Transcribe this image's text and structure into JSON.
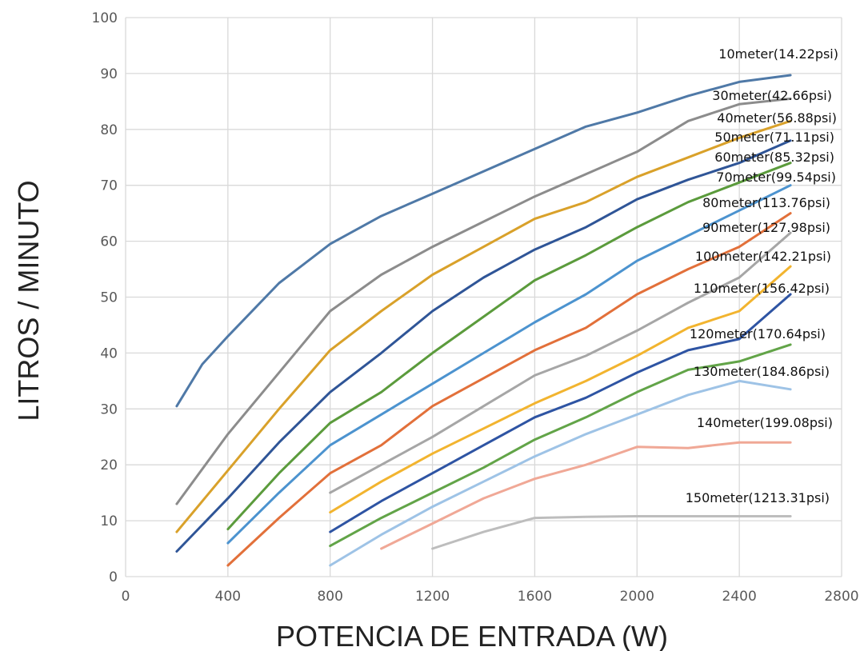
{
  "chart_data": {
    "type": "line",
    "title": "",
    "xlabel": "POTENCIA DE ENTRADA (W)",
    "ylabel": "LITROS / MINUTO",
    "xlim": [
      0,
      2800
    ],
    "ylim": [
      0,
      100
    ],
    "x_ticks": [
      0,
      400,
      800,
      1200,
      1600,
      2000,
      2400,
      2800
    ],
    "y_ticks": [
      0,
      10,
      20,
      30,
      40,
      50,
      60,
      70,
      80,
      90,
      100
    ],
    "grid": true,
    "legend": "inline-right",
    "series": [
      {
        "name": "10meter(14.22psi)",
        "color": "#4f79a7",
        "points": [
          [
            200,
            30.5
          ],
          [
            300,
            38
          ],
          [
            400,
            43
          ],
          [
            600,
            52.5
          ],
          [
            800,
            59.5
          ],
          [
            1000,
            64.5
          ],
          [
            1200,
            68.5
          ],
          [
            1400,
            72.5
          ],
          [
            1600,
            76.5
          ],
          [
            1800,
            80.5
          ],
          [
            2000,
            83
          ],
          [
            2200,
            86
          ],
          [
            2400,
            88.5
          ],
          [
            2600,
            89.7
          ]
        ]
      },
      {
        "name": "30meter(42.66psi)",
        "color": "#8c8c8c",
        "points": [
          [
            200,
            13
          ],
          [
            400,
            25.5
          ],
          [
            600,
            36.5
          ],
          [
            800,
            47.5
          ],
          [
            1000,
            54
          ],
          [
            1200,
            59
          ],
          [
            1400,
            63.5
          ],
          [
            1600,
            68
          ],
          [
            1800,
            72
          ],
          [
            2000,
            76
          ],
          [
            2200,
            81.5
          ],
          [
            2400,
            84.5
          ],
          [
            2600,
            85.5
          ]
        ]
      },
      {
        "name": "40meter(56.88psi)",
        "color": "#d9a12a",
        "points": [
          [
            200,
            8
          ],
          [
            400,
            19
          ],
          [
            600,
            30
          ],
          [
            800,
            40.5
          ],
          [
            1000,
            47.5
          ],
          [
            1200,
            54
          ],
          [
            1400,
            59
          ],
          [
            1600,
            64
          ],
          [
            1800,
            67
          ],
          [
            2000,
            71.5
          ],
          [
            2200,
            75
          ],
          [
            2400,
            78.5
          ],
          [
            2600,
            81.5
          ]
        ]
      },
      {
        "name": "50meter(71.11psi)",
        "color": "#2f5597",
        "points": [
          [
            200,
            4.5
          ],
          [
            400,
            14
          ],
          [
            600,
            24
          ],
          [
            800,
            33
          ],
          [
            1000,
            40
          ],
          [
            1200,
            47.5
          ],
          [
            1400,
            53.5
          ],
          [
            1600,
            58.5
          ],
          [
            1800,
            62.5
          ],
          [
            2000,
            67.5
          ],
          [
            2200,
            71
          ],
          [
            2400,
            74
          ],
          [
            2600,
            78
          ]
        ]
      },
      {
        "name": "60meter(85.32psi)",
        "color": "#5b9b3c",
        "points": [
          [
            400,
            8.5
          ],
          [
            600,
            18.5
          ],
          [
            800,
            27.5
          ],
          [
            1000,
            33
          ],
          [
            1200,
            40
          ],
          [
            1400,
            46.5
          ],
          [
            1600,
            53
          ],
          [
            1800,
            57.5
          ],
          [
            2000,
            62.5
          ],
          [
            2200,
            67
          ],
          [
            2400,
            70.5
          ],
          [
            2600,
            74
          ]
        ]
      },
      {
        "name": "70meter(99.54psi)",
        "color": "#4c93cf",
        "points": [
          [
            400,
            6
          ],
          [
            600,
            15
          ],
          [
            800,
            23.5
          ],
          [
            1000,
            29
          ],
          [
            1200,
            34.5
          ],
          [
            1400,
            40
          ],
          [
            1600,
            45.5
          ],
          [
            1800,
            50.5
          ],
          [
            2000,
            56.5
          ],
          [
            2200,
            61
          ],
          [
            2400,
            65.5
          ],
          [
            2600,
            70
          ]
        ]
      },
      {
        "name": "80meter(113.76psi)",
        "color": "#e2703a",
        "points": [
          [
            400,
            2
          ],
          [
            600,
            10.5
          ],
          [
            800,
            18.5
          ],
          [
            1000,
            23.5
          ],
          [
            1200,
            30.5
          ],
          [
            1400,
            35.5
          ],
          [
            1600,
            40.5
          ],
          [
            1800,
            44.5
          ],
          [
            2000,
            50.5
          ],
          [
            2200,
            55
          ],
          [
            2400,
            59
          ],
          [
            2600,
            65
          ]
        ]
      },
      {
        "name": "90meter(127.98psi)",
        "color": "#a6a6a6",
        "points": [
          [
            800,
            15
          ],
          [
            1000,
            20
          ],
          [
            1200,
            25
          ],
          [
            1400,
            30.5
          ],
          [
            1600,
            36
          ],
          [
            1800,
            39.5
          ],
          [
            2000,
            44
          ],
          [
            2200,
            49
          ],
          [
            2400,
            53.5
          ],
          [
            2600,
            61.5
          ]
        ]
      },
      {
        "name": "100meter(142.21psi)",
        "color": "#f2b42f",
        "points": [
          [
            800,
            11.5
          ],
          [
            1000,
            17
          ],
          [
            1200,
            22
          ],
          [
            1400,
            26.5
          ],
          [
            1600,
            31
          ],
          [
            1800,
            35
          ],
          [
            2000,
            39.5
          ],
          [
            2200,
            44.5
          ],
          [
            2400,
            47.5
          ],
          [
            2600,
            55.5
          ]
        ]
      },
      {
        "name": "110meter(156.42psi)",
        "color": "#2e54a3",
        "points": [
          [
            800,
            8
          ],
          [
            1000,
            13.5
          ],
          [
            1200,
            18.5
          ],
          [
            1400,
            23.5
          ],
          [
            1600,
            28.5
          ],
          [
            1800,
            32
          ],
          [
            2000,
            36.5
          ],
          [
            2200,
            40.5
          ],
          [
            2400,
            42.5
          ],
          [
            2600,
            50.5
          ]
        ]
      },
      {
        "name": "120meter(170.64psi)",
        "color": "#62a448",
        "points": [
          [
            800,
            5.5
          ],
          [
            1000,
            10.5
          ],
          [
            1200,
            15
          ],
          [
            1400,
            19.5
          ],
          [
            1600,
            24.5
          ],
          [
            1800,
            28.5
          ],
          [
            2000,
            33
          ],
          [
            2200,
            37
          ],
          [
            2400,
            38.5
          ],
          [
            2600,
            41.5
          ]
        ]
      },
      {
        "name": "130meter(184.86psi)",
        "color": "#9ec3e6",
        "points": [
          [
            800,
            2
          ],
          [
            1000,
            7.5
          ],
          [
            1200,
            12.5
          ],
          [
            1400,
            17
          ],
          [
            1600,
            21.5
          ],
          [
            1800,
            25.5
          ],
          [
            2000,
            29
          ],
          [
            2200,
            32.5
          ],
          [
            2400,
            35
          ],
          [
            2600,
            33.5
          ]
        ]
      },
      {
        "name": "140meter(199.08psi)",
        "color": "#f0a896",
        "points": [
          [
            1000,
            5
          ],
          [
            1200,
            9.5
          ],
          [
            1400,
            14
          ],
          [
            1600,
            17.5
          ],
          [
            1800,
            20
          ],
          [
            2000,
            23.2
          ],
          [
            2200,
            23
          ],
          [
            2400,
            24
          ],
          [
            2600,
            24
          ]
        ]
      },
      {
        "name": "150meter(1213.31psi)",
        "color": "#bdbdbd",
        "points": [
          [
            1200,
            5
          ],
          [
            1400,
            8
          ],
          [
            1600,
            10.5
          ],
          [
            1800,
            10.7
          ],
          [
            2000,
            10.8
          ],
          [
            2200,
            10.8
          ],
          [
            2400,
            10.8
          ],
          [
            2600,
            10.8
          ]
        ]
      }
    ]
  }
}
